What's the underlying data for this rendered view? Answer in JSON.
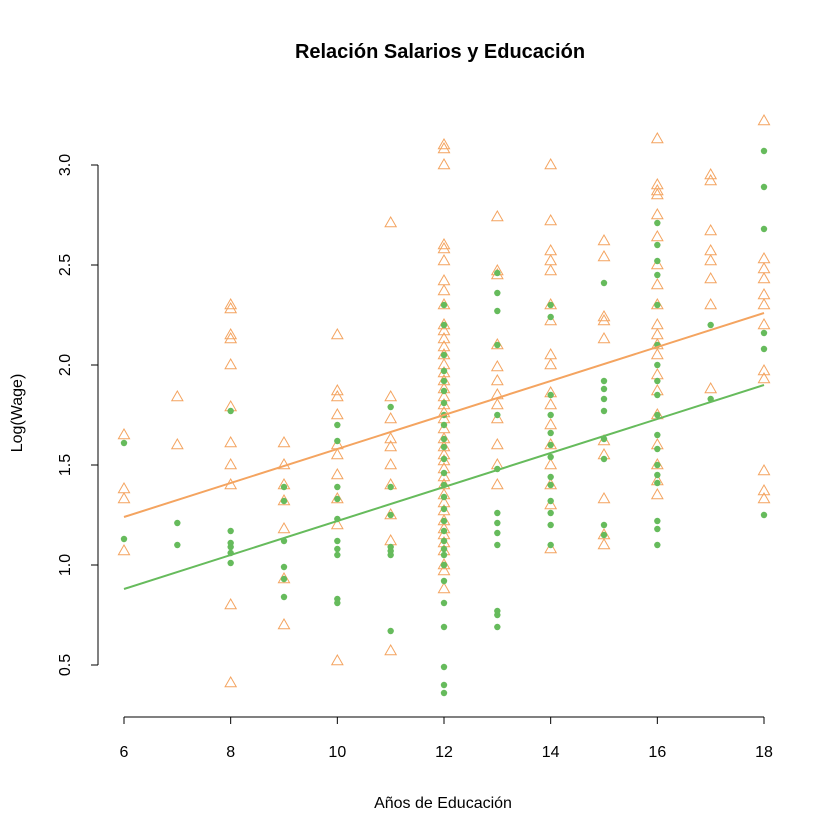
{
  "chart_data": {
    "type": "scatter",
    "title": "Relación Salarios y Educación",
    "xlabel": "Años de Educación",
    "ylabel": "Log(Wage)",
    "xlim": [
      6,
      18
    ],
    "ylim": [
      0.3,
      3.25
    ],
    "xticks": [
      "6",
      "8",
      "10",
      "12",
      "14",
      "16",
      "18"
    ],
    "yticks": [
      "0.5",
      "1.0",
      "1.5",
      "2.0",
      "2.5",
      "3.0"
    ],
    "grid": false,
    "legend": "none",
    "series": [
      {
        "marker": "triangle-open",
        "color": "#F4A460",
        "x": [
          6,
          6,
          6,
          6,
          7,
          7,
          8,
          8,
          8,
          8,
          8,
          8,
          8,
          8,
          8,
          8,
          8,
          9,
          9,
          9,
          9,
          9,
          9,
          9,
          10,
          10,
          10,
          10,
          10,
          10,
          10,
          10,
          10,
          10,
          11,
          11,
          11,
          11,
          11,
          11,
          11,
          11,
          11,
          11,
          12,
          12,
          12,
          12,
          12,
          12,
          12,
          12,
          12,
          12,
          12,
          12,
          12,
          12,
          12,
          12,
          12,
          12,
          12,
          12,
          12,
          12,
          12,
          12,
          12,
          12,
          12,
          12,
          12,
          12,
          12,
          12,
          12,
          12,
          12,
          12,
          12,
          12,
          12,
          12,
          12,
          13,
          13,
          13,
          13,
          13,
          13,
          13,
          13,
          13,
          13,
          13,
          13,
          14,
          14,
          14,
          14,
          14,
          14,
          14,
          14,
          14,
          14,
          14,
          14,
          14,
          14,
          14,
          14,
          14,
          15,
          15,
          15,
          15,
          15,
          15,
          15,
          15,
          15,
          15,
          16,
          16,
          16,
          16,
          16,
          16,
          16,
          16,
          16,
          16,
          16,
          16,
          16,
          16,
          16,
          16,
          16,
          16,
          16,
          16,
          17,
          17,
          17,
          17,
          17,
          17,
          17,
          17,
          18,
          18,
          18,
          18,
          18,
          18,
          18,
          18,
          18,
          18,
          18,
          18
        ],
        "y": [
          1.65,
          1.38,
          1.33,
          1.07,
          1.84,
          1.6,
          2.3,
          2.28,
          2.15,
          2.13,
          2.0,
          1.79,
          1.61,
          1.5,
          1.4,
          0.8,
          0.41,
          1.61,
          1.5,
          1.4,
          1.32,
          1.18,
          0.93,
          0.7,
          2.15,
          1.87,
          1.84,
          1.75,
          1.6,
          1.55,
          1.45,
          1.33,
          1.2,
          0.52,
          2.71,
          1.84,
          1.73,
          1.63,
          1.59,
          1.5,
          1.4,
          1.25,
          1.12,
          0.57,
          3.1,
          3.08,
          3.0,
          2.6,
          2.58,
          2.52,
          2.42,
          2.37,
          2.3,
          2.2,
          2.17,
          2.13,
          2.09,
          2.05,
          2.0,
          1.96,
          1.92,
          1.88,
          1.84,
          1.8,
          1.76,
          1.73,
          1.68,
          1.63,
          1.59,
          1.55,
          1.52,
          1.48,
          1.44,
          1.4,
          1.35,
          1.31,
          1.27,
          1.22,
          1.18,
          1.15,
          1.11,
          1.07,
          1.0,
          0.97,
          0.88,
          2.74,
          2.47,
          2.45,
          2.1,
          1.99,
          1.92,
          1.85,
          1.8,
          1.73,
          1.6,
          1.5,
          1.4,
          3.0,
          2.72,
          2.57,
          2.52,
          2.47,
          2.3,
          2.22,
          2.05,
          2.0,
          1.86,
          1.8,
          1.7,
          1.6,
          1.5,
          1.4,
          1.3,
          1.08,
          2.62,
          2.54,
          2.24,
          2.22,
          2.13,
          1.62,
          1.55,
          1.33,
          1.15,
          1.1,
          3.13,
          2.9,
          2.87,
          2.85,
          2.75,
          2.64,
          2.5,
          2.4,
          2.3,
          2.2,
          2.15,
          2.1,
          2.05,
          1.95,
          1.87,
          1.75,
          1.6,
          1.5,
          1.42,
          1.35,
          2.95,
          2.92,
          2.67,
          2.57,
          2.52,
          2.43,
          2.3,
          1.88,
          3.22,
          2.53,
          2.48,
          2.43,
          2.35,
          2.3,
          2.2,
          1.97,
          1.93,
          1.47,
          1.37,
          1.33
        ]
      },
      {
        "marker": "circle-filled",
        "color": "#66BB5C",
        "x": [
          6,
          6,
          7,
          7,
          8,
          8,
          8,
          8,
          8,
          8,
          9,
          9,
          9,
          9,
          9,
          9,
          10,
          10,
          10,
          10,
          10,
          10,
          10,
          10,
          10,
          10,
          11,
          11,
          11,
          11,
          11,
          11,
          11,
          12,
          12,
          12,
          12,
          12,
          12,
          12,
          12,
          12,
          12,
          12,
          12,
          12,
          12,
          12,
          12,
          12,
          12,
          12,
          12,
          12,
          12,
          12,
          12,
          12,
          12,
          12,
          12,
          12,
          13,
          13,
          13,
          13,
          13,
          13,
          13,
          13,
          13,
          13,
          13,
          13,
          13,
          14,
          14,
          14,
          14,
          14,
          14,
          14,
          14,
          14,
          14,
          14,
          14,
          14,
          15,
          15,
          15,
          15,
          15,
          15,
          15,
          15,
          15,
          16,
          16,
          16,
          16,
          16,
          16,
          16,
          16,
          16,
          16,
          16,
          16,
          16,
          16,
          16,
          16,
          16,
          16,
          17,
          17,
          18,
          18,
          18,
          18,
          18,
          18
        ],
        "y": [
          1.61,
          1.13,
          1.21,
          1.1,
          1.77,
          1.17,
          1.11,
          1.09,
          1.06,
          1.01,
          1.39,
          1.32,
          1.12,
          0.99,
          0.93,
          0.84,
          1.7,
          1.62,
          1.39,
          1.33,
          1.23,
          1.12,
          1.08,
          1.05,
          0.83,
          0.81,
          1.79,
          1.39,
          1.25,
          1.09,
          1.07,
          1.05,
          0.67,
          2.3,
          2.2,
          2.05,
          1.97,
          1.92,
          1.87,
          1.81,
          1.75,
          1.7,
          1.63,
          1.59,
          1.53,
          1.46,
          1.4,
          1.34,
          1.28,
          1.22,
          1.17,
          1.12,
          1.08,
          1.05,
          1.0,
          0.92,
          0.81,
          0.69,
          0.49,
          0.4,
          0.36,
          1.0,
          2.46,
          2.36,
          2.27,
          2.1,
          1.75,
          1.48,
          1.26,
          1.21,
          1.16,
          1.1,
          0.77,
          0.75,
          0.69,
          2.3,
          2.24,
          1.85,
          1.75,
          1.66,
          1.6,
          1.54,
          1.44,
          1.4,
          1.32,
          1.26,
          1.2,
          1.1,
          2.41,
          1.92,
          1.88,
          1.83,
          1.77,
          1.63,
          1.53,
          1.2,
          1.15,
          2.71,
          2.6,
          2.52,
          2.45,
          2.3,
          2.1,
          2.0,
          1.92,
          1.85,
          1.75,
          1.65,
          1.58,
          1.5,
          1.45,
          1.41,
          1.22,
          1.18,
          1.1,
          2.2,
          1.83,
          3.07,
          2.89,
          2.68,
          2.16,
          2.08,
          1.25
        ]
      }
    ],
    "lines": [
      {
        "name": "",
        "color": "#F4A460",
        "x": [
          6,
          18
        ],
        "y": [
          1.24,
          2.26
        ]
      },
      {
        "name": "",
        "color": "#66BB5C",
        "x": [
          6,
          18
        ],
        "y": [
          0.88,
          1.9
        ]
      }
    ]
  }
}
